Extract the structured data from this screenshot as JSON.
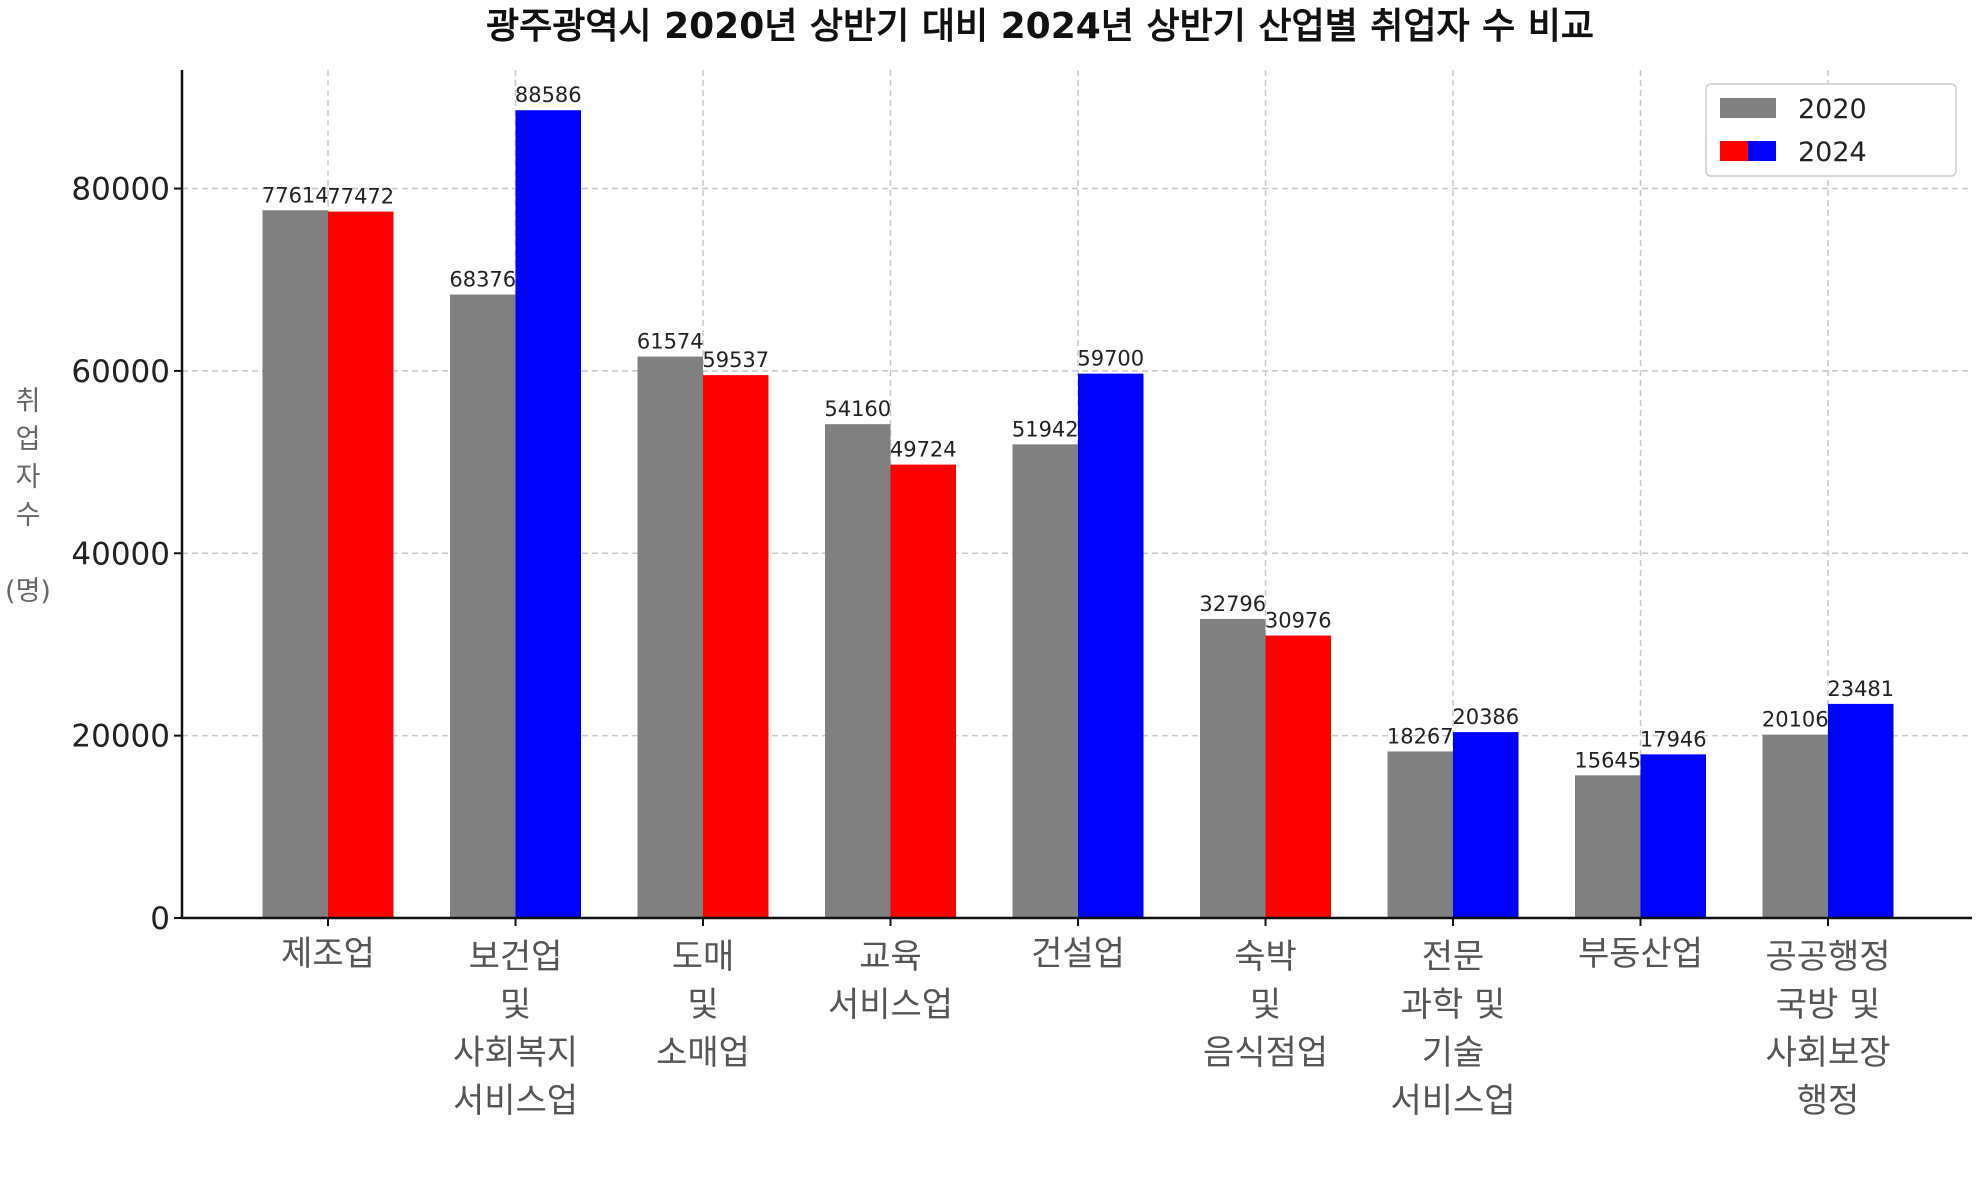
{
  "chart_data": {
    "type": "bar",
    "title": "광주광역시 2020년 상반기 대비 2024년 상반기 산업별 취업자 수 비교",
    "xlabel": "",
    "ylabel": "취업자 수 (명)",
    "ylim": [
      0,
      93000
    ],
    "yticks": [
      0,
      20000,
      40000,
      60000,
      80000
    ],
    "grid": true,
    "legend_position": "top-right",
    "categories": [
      "제조업",
      "보건업\n및\n사회복지\n서비스업",
      "도매\n및\n소매업",
      "교육\n서비스업",
      "건설업",
      "숙박\n및\n음식점업",
      "전문\n과학 및\n기술\n서비스업",
      "부동산업",
      "공공행정\n국방 및\n사회보장\n행정"
    ],
    "series": [
      {
        "name": "2020",
        "values": [
          77614,
          68376,
          61574,
          54160,
          51942,
          32796,
          18267,
          15645,
          20106
        ],
        "colors": [
          "#808080",
          "#808080",
          "#808080",
          "#808080",
          "#808080",
          "#808080",
          "#808080",
          "#808080",
          "#808080"
        ]
      },
      {
        "name": "2024",
        "values": [
          77472,
          88586,
          59537,
          49724,
          59700,
          30976,
          20386,
          17946,
          23481
        ],
        "colors": [
          "#ff0000",
          "#0000ff",
          "#ff0000",
          "#ff0000",
          "#0000ff",
          "#ff0000",
          "#0000ff",
          "#0000ff",
          "#0000ff"
        ]
      }
    ],
    "legend_swatches": [
      [
        "#808080"
      ],
      [
        "#ff0000",
        "#0000ff"
      ]
    ]
  }
}
